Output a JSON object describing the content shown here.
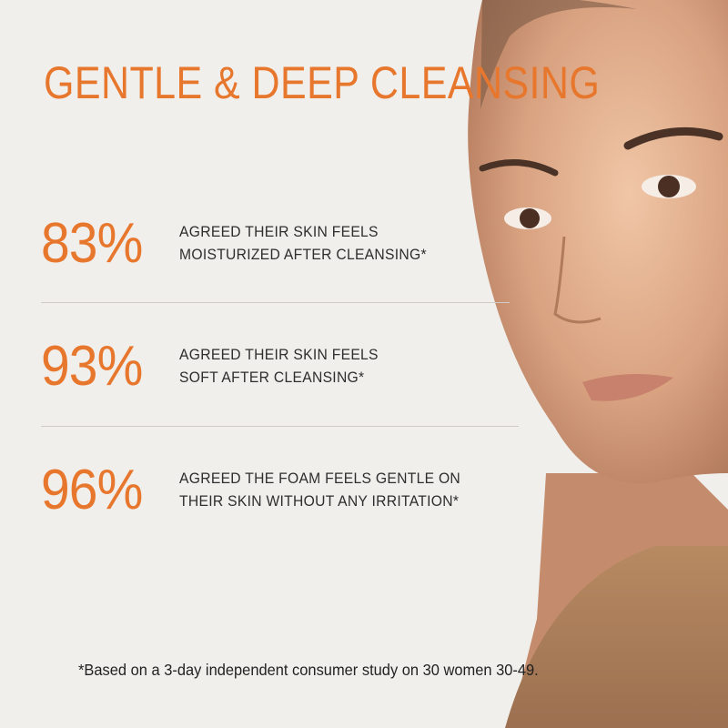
{
  "colors": {
    "accent": "#e8772e",
    "background": "#f1efec"
  },
  "title": "GENTLE & DEEP CLEANSING",
  "stats": [
    {
      "value": "83%",
      "line1": "AGREED THEIR SKIN FEELS",
      "line2": "MOISTURIZED AFTER CLEANSING*"
    },
    {
      "value": "93%",
      "line1": "AGREED THEIR SKIN FEELS",
      "line2": "SOFT AFTER CLEANSING*"
    },
    {
      "value": "96%",
      "line1": "AGREED THE FOAM FEELS GENTLE ON",
      "line2": "THEIR SKIN WITHOUT ANY IRRITATION*"
    }
  ],
  "footnote": "*Based on a 3-day independent consumer study on 30 women 30-49."
}
